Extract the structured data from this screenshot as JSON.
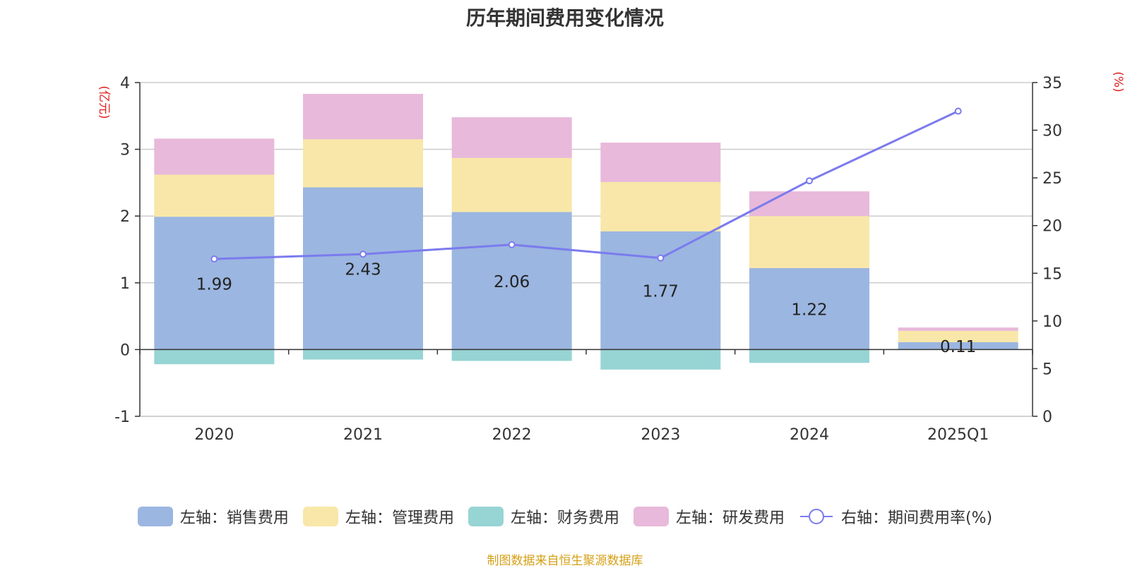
{
  "chart_data": {
    "type": "bar",
    "stacked": true,
    "title": "历年期间费用变化情况",
    "categories": [
      "2020",
      "2021",
      "2022",
      "2023",
      "2024",
      "2025Q1"
    ],
    "left_axis": {
      "label": "(亿元)",
      "range": [
        -1,
        4
      ],
      "ticks": [
        "4",
        "3",
        "2",
        "1",
        "0",
        "-1"
      ],
      "tick_values": [
        4,
        3,
        2,
        1,
        0,
        -1
      ]
    },
    "right_axis": {
      "label": "(%)",
      "range": [
        0,
        35
      ],
      "ticks": [
        "35",
        "30",
        "25",
        "20",
        "15",
        "10",
        "5",
        "0"
      ],
      "tick_values": [
        35,
        30,
        25,
        20,
        15,
        10,
        5,
        0
      ]
    },
    "series": [
      {
        "name": "左轴：销售费用",
        "axis": "left",
        "type": "bar",
        "color": "#9bb6e0",
        "values": [
          1.99,
          2.43,
          2.06,
          1.77,
          1.22,
          0.11
        ],
        "labels": [
          "1.99",
          "2.43",
          "2.06",
          "1.77",
          "1.22",
          "0.11"
        ]
      },
      {
        "name": "左轴：管理费用",
        "axis": "left",
        "type": "bar",
        "color": "#f8e7a8",
        "values": [
          0.63,
          0.72,
          0.81,
          0.74,
          0.78,
          0.17
        ]
      },
      {
        "name": "左轴：财务费用",
        "axis": "left",
        "type": "bar",
        "color": "#97d4d4",
        "values": [
          -0.22,
          -0.15,
          -0.17,
          -0.3,
          -0.2,
          0.0
        ]
      },
      {
        "name": "左轴：研发费用",
        "axis": "left",
        "type": "bar",
        "color": "#e8b9da",
        "values": [
          0.54,
          0.68,
          0.61,
          0.59,
          0.37,
          0.05
        ]
      },
      {
        "name": "右轴：期间费用率(%)",
        "axis": "right",
        "type": "line",
        "color": "#7b7bee",
        "values": [
          16.5,
          17.0,
          18.0,
          16.6,
          24.7,
          32.0
        ]
      }
    ],
    "legend_position": "bottom",
    "grid": true
  },
  "source_text": "制图数据来自恒生聚源数据库"
}
